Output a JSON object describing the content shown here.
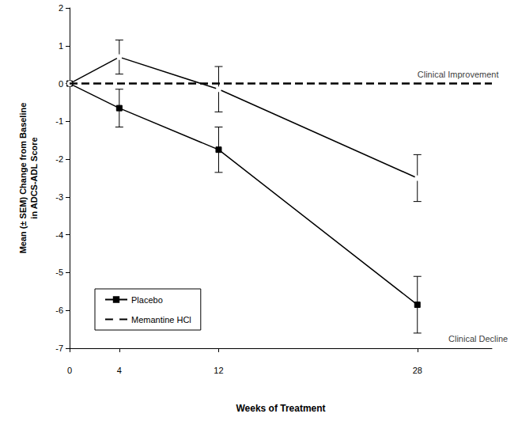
{
  "chart_data": {
    "type": "line",
    "xlabel": "Weeks of Treatment",
    "ylabel": "Mean (± SEM) Change from Baseline\nin ADCS-ADL Score",
    "x": [
      0,
      4,
      12,
      28
    ],
    "series": [
      {
        "name": "Placebo",
        "color": "#000000",
        "marker": "square",
        "line_style": "solid",
        "values": [
          0,
          -0.65,
          -1.75,
          -5.85
        ],
        "errors": [
          0,
          0.5,
          0.6,
          0.75
        ]
      },
      {
        "name": "Memantine HCl",
        "color": "#000000",
        "marker": "circle",
        "line_style": "solid",
        "values": [
          0,
          0.7,
          -0.15,
          -2.5
        ],
        "errors": [
          0,
          0.45,
          0.6,
          0.62
        ]
      }
    ],
    "xlim": [
      0,
      34
    ],
    "xticks": [
      0,
      4,
      12,
      28
    ],
    "ylim": [
      -7,
      2
    ],
    "yticks": [
      -7,
      -6,
      -5,
      -4,
      -3,
      -2,
      -1,
      0,
      1,
      2
    ],
    "reference_line": {
      "y": 0,
      "line_style": "dashed"
    },
    "annotations": [
      {
        "text": "Clinical Improvement",
        "x": 28,
        "y": 0.25
      },
      {
        "text": "Clinical Decline",
        "x": 30.5,
        "y": -6.75
      }
    ],
    "legend": "lower left",
    "grid": false
  }
}
